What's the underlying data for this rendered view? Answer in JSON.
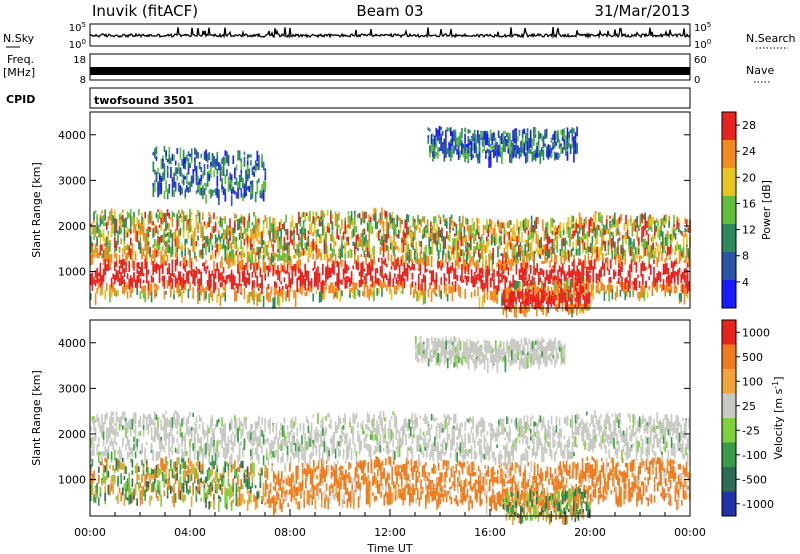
{
  "header": {
    "station": "Inuvik (fitACF)",
    "beam": "Beam 03",
    "date": "31/Mar/2013"
  },
  "panels": {
    "nsky": {
      "label": "N.Sky",
      "tick_top": "10^5",
      "tick_bottom": "10^0",
      "right_label": "N.Search",
      "right_tick_top": "10^5",
      "right_tick_bottom": "10^0"
    },
    "freq": {
      "label_line1": "Freq.",
      "label_line2": "[MHz]",
      "tick_top": "18",
      "tick_bottom": "8",
      "right_label": "Nave",
      "right_tick_top": "60",
      "right_tick_bottom": "0"
    },
    "cpid": {
      "label": "CPID",
      "value": "twofsound 3501"
    }
  },
  "chart_data": [
    {
      "type": "heatmap",
      "name": "power",
      "ylabel": "Slant Range [km]",
      "yticks": [
        "1000",
        "2000",
        "3000",
        "4000"
      ],
      "ylim": [
        200,
        4500
      ],
      "xlim": [
        "00:00",
        "24:00"
      ],
      "colorbar": {
        "label": "Power [dB]",
        "ticks": [
          "4",
          "8",
          "12",
          "16",
          "20",
          "24",
          "28"
        ],
        "colors": [
          "#1a1aff",
          "#2a54a6",
          "#2c8a5a",
          "#5fbf3a",
          "#e6c51e",
          "#f28a1c",
          "#e8231c"
        ]
      },
      "bands": [
        {
          "start_h": 0.0,
          "end_h": 24.0,
          "center_km": 1000,
          "width_km": 500,
          "level": "high"
        },
        {
          "start_h": 0.0,
          "end_h": 12.0,
          "center_km": 1900,
          "width_km": 450,
          "level": "mid"
        },
        {
          "start_h": 12.0,
          "end_h": 24.0,
          "center_km": 1850,
          "width_km": 400,
          "level": "mid"
        },
        {
          "start_h": 16.5,
          "end_h": 20.0,
          "center_km": 500,
          "width_km": 350,
          "level": "high"
        },
        {
          "start_h": 2.5,
          "end_h": 7.0,
          "center_km": 3200,
          "width_km": 500,
          "level": "low"
        },
        {
          "start_h": 13.5,
          "end_h": 19.5,
          "center_km": 3900,
          "width_km": 300,
          "level": "low"
        }
      ]
    },
    {
      "type": "heatmap",
      "name": "velocity",
      "ylabel": "Slant Range [km]",
      "yticks": [
        "1000",
        "2000",
        "3000",
        "4000"
      ],
      "ylim": [
        200,
        4500
      ],
      "xlim": [
        "00:00",
        "24:00"
      ],
      "xticks": [
        "00:00",
        "04:00",
        "08:00",
        "12:00",
        "16:00",
        "20:00",
        "00:00"
      ],
      "xlabel": "Time UT",
      "colorbar": {
        "label": "Velocity [m s^-1]",
        "ticks": [
          "1000",
          "500",
          "100",
          "25",
          "-25",
          "-100",
          "-500",
          "-1000"
        ],
        "colors": [
          "#2233aa",
          "#2e6b54",
          "#3a9c46",
          "#7cd13c",
          "#c9c9c3",
          "#f2a23a",
          "#f07b1c",
          "#e8231c"
        ]
      },
      "bands": [
        {
          "start_h": 0.0,
          "end_h": 7.0,
          "center_km": 1000,
          "width_km": 450,
          "level": "mixed"
        },
        {
          "start_h": 7.0,
          "end_h": 24.0,
          "center_km": 1000,
          "width_km": 450,
          "level": "negative"
        },
        {
          "start_h": 0.0,
          "end_h": 24.0,
          "center_km": 2000,
          "width_km": 450,
          "level": "zero"
        },
        {
          "start_h": 16.5,
          "end_h": 20.0,
          "center_km": 500,
          "width_km": 300,
          "level": "mixed"
        },
        {
          "start_h": 13.0,
          "end_h": 19.0,
          "center_km": 3900,
          "width_km": 250,
          "level": "zero"
        }
      ]
    }
  ]
}
